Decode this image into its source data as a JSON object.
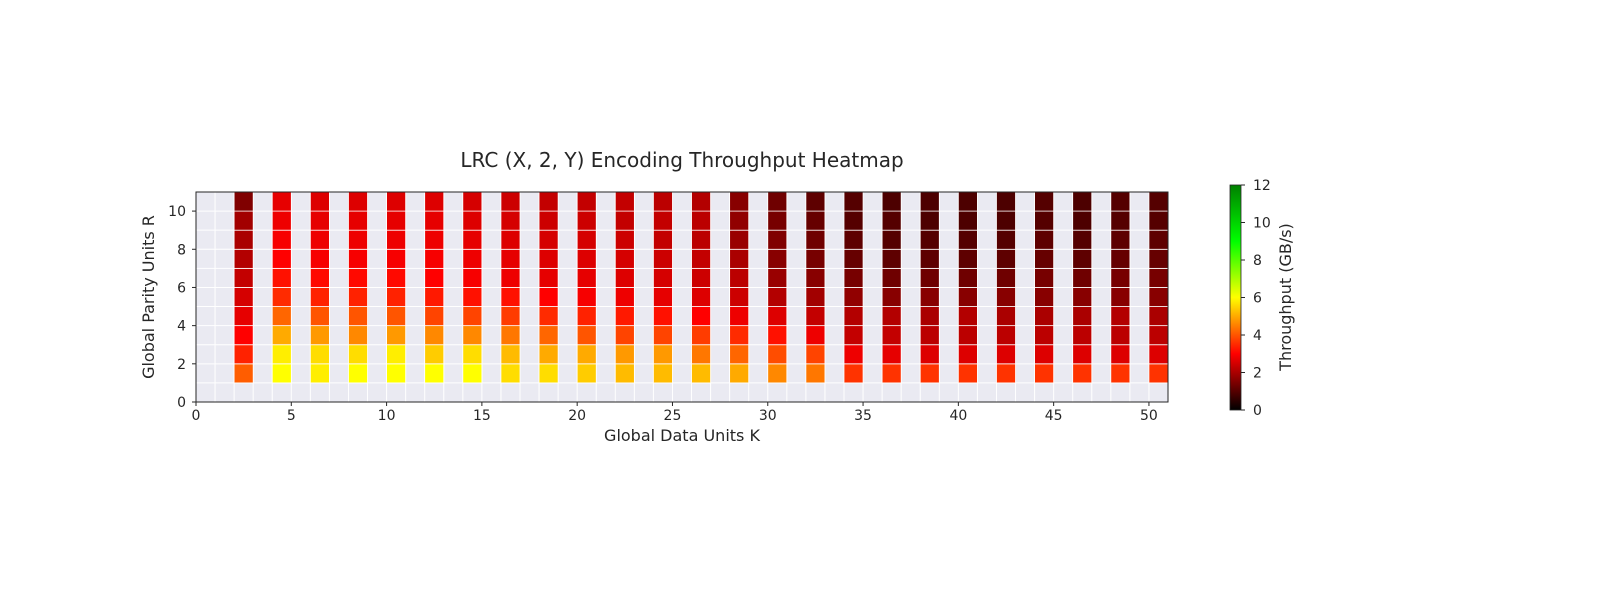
{
  "chart_data": {
    "type": "heatmap",
    "title": "LRC (X, 2, Y) Encoding Throughput Heatmap",
    "xlabel": "Global Data Units K",
    "ylabel": "Global Parity Units R",
    "xlim": [
      0,
      51
    ],
    "ylim": [
      0,
      11
    ],
    "xticks": [
      0,
      5,
      10,
      15,
      20,
      25,
      30,
      35,
      40,
      45,
      50
    ],
    "yticks": [
      0,
      2,
      4,
      6,
      8,
      10
    ],
    "colorbar": {
      "label": "Throughput (GB/s)",
      "min": 0,
      "max": 12,
      "ticks": [
        0,
        2,
        4,
        6,
        8,
        10,
        12
      ],
      "colors": [
        "#000000",
        "#ff0000",
        "#ffff00",
        "#00ff00",
        "#008000"
      ]
    },
    "grid": true,
    "background": "#eaeaf2",
    "x": [
      2,
      4,
      6,
      8,
      10,
      12,
      14,
      16,
      18,
      20,
      22,
      24,
      26,
      28,
      30,
      32,
      34,
      36,
      38,
      40,
      42,
      44,
      46,
      48,
      50
    ],
    "y": [
      1,
      2,
      3,
      4,
      5,
      6,
      7,
      8,
      9,
      10
    ],
    "z": [
      [
        4.1,
        3.4,
        3.0,
        2.7,
        2.5,
        2.3,
        2.1,
        2.0,
        1.9,
        1.5
      ],
      [
        6.0,
        5.8,
        5.0,
        4.2,
        3.5,
        3.2,
        3.0,
        2.9,
        2.8,
        2.7
      ],
      [
        5.8,
        5.6,
        4.8,
        4.0,
        3.4,
        3.1,
        2.9,
        2.8,
        2.7,
        2.6
      ],
      [
        6.0,
        5.6,
        4.6,
        4.0,
        3.4,
        3.1,
        2.9,
        2.8,
        2.7,
        2.6
      ],
      [
        6.0,
        5.8,
        4.8,
        4.0,
        3.4,
        3.1,
        2.9,
        2.8,
        2.7,
        2.6
      ],
      [
        6.0,
        5.4,
        4.6,
        3.8,
        3.3,
        3.0,
        2.9,
        2.8,
        2.7,
        2.6
      ],
      [
        6.0,
        5.6,
        4.6,
        3.8,
        3.2,
        2.9,
        2.8,
        2.7,
        2.6,
        2.5
      ],
      [
        5.6,
        5.2,
        4.4,
        3.7,
        3.2,
        2.8,
        2.7,
        2.6,
        2.5,
        2.4
      ],
      [
        5.6,
        5.0,
        4.2,
        3.5,
        3.0,
        2.7,
        2.6,
        2.5,
        2.4,
        2.3
      ],
      [
        5.4,
        5.0,
        4.0,
        3.4,
        2.9,
        2.7,
        2.6,
        2.5,
        2.4,
        2.3
      ],
      [
        5.2,
        4.8,
        3.8,
        3.3,
        2.8,
        2.6,
        2.5,
        2.4,
        2.3,
        2.3
      ],
      [
        5.2,
        4.8,
        3.8,
        3.2,
        2.7,
        2.5,
        2.4,
        2.3,
        2.3,
        2.2
      ],
      [
        5.2,
        4.4,
        3.7,
        3.0,
        2.6,
        2.4,
        2.3,
        2.2,
        2.2,
        2.1
      ],
      [
        5.0,
        4.2,
        3.5,
        2.8,
        2.4,
        2.2,
        2.0,
        1.8,
        1.7,
        1.6
      ],
      [
        4.6,
        3.9,
        3.2,
        2.6,
        2.1,
        1.8,
        1.6,
        1.5,
        1.4,
        1.3
      ],
      [
        4.4,
        3.8,
        2.8,
        2.3,
        1.9,
        1.6,
        1.4,
        1.3,
        1.2,
        1.1
      ],
      [
        3.6,
        2.8,
        2.3,
        2.1,
        1.7,
        1.4,
        1.2,
        1.1,
        1.0,
        1.0
      ],
      [
        3.6,
        2.7,
        2.3,
        2.1,
        1.6,
        1.3,
        1.1,
        1.0,
        1.0,
        0.9
      ],
      [
        3.6,
        2.6,
        2.2,
        2.0,
        1.6,
        1.3,
        1.1,
        1.0,
        0.9,
        0.9
      ],
      [
        3.6,
        2.6,
        2.2,
        2.1,
        1.6,
        1.3,
        1.1,
        1.0,
        0.9,
        0.9
      ],
      [
        3.6,
        2.6,
        2.2,
        2.0,
        1.6,
        1.3,
        1.1,
        1.0,
        0.9,
        0.9
      ],
      [
        3.6,
        2.6,
        2.2,
        2.0,
        1.6,
        1.4,
        1.2,
        1.1,
        1.0,
        1.0
      ],
      [
        3.6,
        2.6,
        2.2,
        2.0,
        1.6,
        1.3,
        1.1,
        1.0,
        0.9,
        0.9
      ],
      [
        3.6,
        2.6,
        2.2,
        2.1,
        1.6,
        1.4,
        1.2,
        1.1,
        1.0,
        1.0
      ],
      [
        3.6,
        2.6,
        2.2,
        2.0,
        1.6,
        1.4,
        1.2,
        1.1,
        1.0,
        1.0
      ]
    ]
  }
}
